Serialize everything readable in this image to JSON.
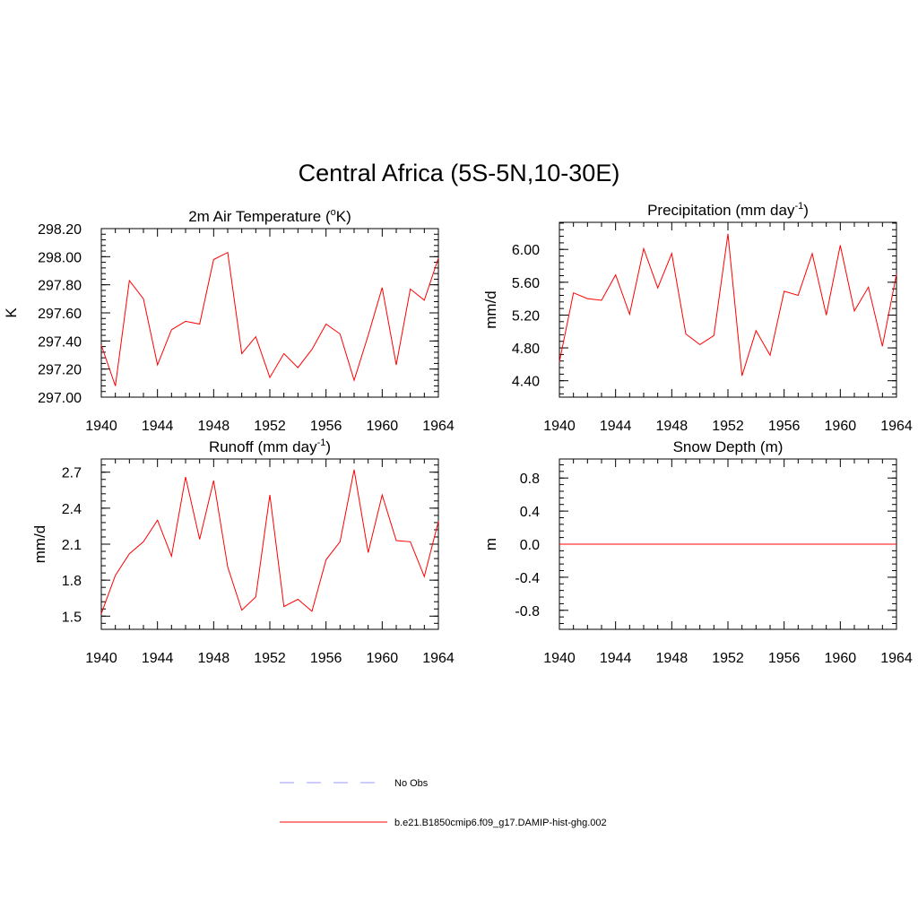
{
  "title": "Central Africa (5S-5N,10-30E)",
  "legend": [
    {
      "label": "No Obs",
      "color": "#9999ff",
      "dash": "dashed"
    },
    {
      "label": "b.e21.B1850cmip6.f09_g17.DAMIP-hist-ghg.002",
      "color": "#ff0000",
      "dash": "solid"
    }
  ],
  "chart_data": [
    {
      "type": "line",
      "title": "2m Air Temperature (",
      "title_sup": "o",
      "title_after": "K)",
      "ylabel": "K",
      "xlim": [
        1940,
        1964
      ],
      "ylim": [
        297.0,
        298.2
      ],
      "yticks": [
        297.0,
        297.2,
        297.4,
        297.6,
        297.8,
        298.0,
        298.2
      ],
      "ytick_labels": [
        "297.00",
        "297.20",
        "297.40",
        "297.60",
        "297.80",
        "298.00",
        "298.20"
      ],
      "xticks": [
        1940,
        1944,
        1948,
        1952,
        1956,
        1960,
        1964
      ],
      "xtick_labels": [
        "1940",
        "1944",
        "1948",
        "1952",
        "1956",
        "1960",
        "1964"
      ],
      "yminor": 0.04,
      "series": [
        {
          "color": "#ff0000",
          "x": [
            1940,
            1941,
            1942,
            1943,
            1944,
            1945,
            1946,
            1947,
            1948,
            1949,
            1950,
            1951,
            1952,
            1953,
            1954,
            1955,
            1956,
            1957,
            1958,
            1959,
            1960,
            1961,
            1962,
            1963,
            1964
          ],
          "values": [
            297.37,
            297.08,
            297.83,
            297.7,
            297.23,
            297.48,
            297.54,
            297.52,
            297.98,
            298.03,
            297.31,
            297.43,
            297.14,
            297.31,
            297.21,
            297.34,
            297.52,
            297.45,
            297.12,
            297.44,
            297.78,
            297.23,
            297.77,
            297.69,
            297.99
          ]
        }
      ]
    },
    {
      "type": "line",
      "title": "Precipitation (mm day",
      "title_sup": "-1",
      "title_after": ")",
      "ylabel": "mm/d",
      "xlim": [
        1940,
        1964
      ],
      "ylim": [
        4.2,
        6.33
      ],
      "yticks": [
        4.4,
        4.8,
        5.2,
        5.6,
        6.0
      ],
      "ytick_labels": [
        "4.40",
        "4.80",
        "5.20",
        "5.60",
        "6.00"
      ],
      "xticks": [
        1940,
        1944,
        1948,
        1952,
        1956,
        1960,
        1964
      ],
      "xtick_labels": [
        "1940",
        "1944",
        "1948",
        "1952",
        "1956",
        "1960",
        "1964"
      ],
      "yminor": 0.08,
      "series": [
        {
          "color": "#ff0000",
          "x": [
            1940,
            1941,
            1942,
            1943,
            1944,
            1945,
            1946,
            1947,
            1948,
            1949,
            1950,
            1951,
            1952,
            1953,
            1954,
            1955,
            1956,
            1957,
            1958,
            1959,
            1960,
            1961,
            1962,
            1963,
            1964
          ],
          "values": [
            4.63,
            5.47,
            5.4,
            5.38,
            5.69,
            5.21,
            6.01,
            5.53,
            5.95,
            4.97,
            4.84,
            4.95,
            6.19,
            4.46,
            5.01,
            4.71,
            5.49,
            5.44,
            5.95,
            5.2,
            6.05,
            5.25,
            5.54,
            4.82,
            5.7
          ]
        }
      ]
    },
    {
      "type": "line",
      "title": "Runoff (mm day",
      "title_sup": "-1",
      "title_after": ")",
      "ylabel": "mm/d",
      "xlim": [
        1940,
        1964
      ],
      "ylim": [
        1.39,
        2.81
      ],
      "yticks": [
        1.5,
        1.8,
        2.1,
        2.4,
        2.7
      ],
      "ytick_labels": [
        "1.5",
        "1.8",
        "2.1",
        "2.4",
        "2.7"
      ],
      "xticks": [
        1940,
        1944,
        1948,
        1952,
        1956,
        1960,
        1964
      ],
      "xtick_labels": [
        "1940",
        "1944",
        "1948",
        "1952",
        "1956",
        "1960",
        "1964"
      ],
      "yminor": 0.06,
      "series": [
        {
          "color": "#ff0000",
          "x": [
            1940,
            1941,
            1942,
            1943,
            1944,
            1945,
            1946,
            1947,
            1948,
            1949,
            1950,
            1951,
            1952,
            1953,
            1954,
            1955,
            1956,
            1957,
            1958,
            1959,
            1960,
            1961,
            1962,
            1963,
            1964
          ],
          "values": [
            1.52,
            1.84,
            2.02,
            2.12,
            2.3,
            2.0,
            2.66,
            2.14,
            2.63,
            1.91,
            1.55,
            1.66,
            2.51,
            1.58,
            1.64,
            1.54,
            1.97,
            2.12,
            2.72,
            2.03,
            2.51,
            2.13,
            2.12,
            1.83,
            2.29
          ]
        }
      ]
    },
    {
      "type": "line",
      "title": "Snow Depth (m)",
      "title_sup": "",
      "title_after": "",
      "ylabel": "m",
      "xlim": [
        1940,
        1964
      ],
      "ylim": [
        -1.03,
        1.03
      ],
      "yticks": [
        -0.8,
        -0.4,
        0.0,
        0.4,
        0.8
      ],
      "ytick_labels": [
        "-0.8",
        "-0.4",
        "0.0",
        "0.4",
        "0.8"
      ],
      "xticks": [
        1940,
        1944,
        1948,
        1952,
        1956,
        1960,
        1964
      ],
      "xtick_labels": [
        "1940",
        "1944",
        "1948",
        "1952",
        "1956",
        "1960",
        "1964"
      ],
      "yminor": 0.08,
      "series": [
        {
          "color": "#ff0000",
          "x": [
            1940,
            1941,
            1942,
            1943,
            1944,
            1945,
            1946,
            1947,
            1948,
            1949,
            1950,
            1951,
            1952,
            1953,
            1954,
            1955,
            1956,
            1957,
            1958,
            1959,
            1960,
            1961,
            1962,
            1963,
            1964
          ],
          "values": [
            0,
            0,
            0,
            0,
            0,
            0,
            0,
            0,
            0,
            0,
            0,
            0,
            0,
            0,
            0,
            0,
            0,
            0,
            0,
            0,
            0,
            0,
            0,
            0,
            0
          ]
        }
      ]
    }
  ]
}
